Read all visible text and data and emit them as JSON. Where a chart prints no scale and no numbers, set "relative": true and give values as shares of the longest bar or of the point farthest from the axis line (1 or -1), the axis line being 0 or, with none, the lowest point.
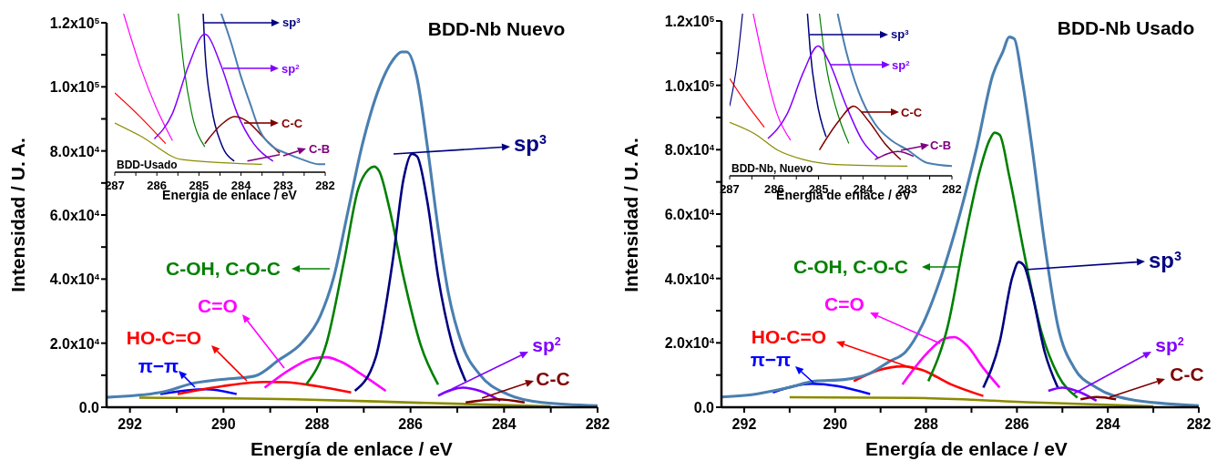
{
  "chart_data": [
    {
      "type": "line",
      "legend": "left",
      "title": "BDD-Nb Nuevo",
      "xlabel": "Energía de enlace / eV",
      "ylabel": "Intensidad / U. A.",
      "xlim": [
        292.5,
        282
      ],
      "xticks": [
        292,
        {
          "value": 291,
          "label": null
        },
        290,
        {
          "value": 289,
          "label": null
        },
        288,
        {
          "value": 287,
          "label": null
        },
        286,
        {
          "value": 285,
          "label": null
        },
        284,
        {
          "value": 283,
          "label": null
        },
        282
      ],
      "ylim": [
        0,
        120000
      ],
      "yticks": [
        {
          "value": 0,
          "label": "0.0"
        },
        {
          "value": 10000,
          "label": null
        },
        {
          "value": 20000,
          "label": "2.0x10$^{4}$"
        },
        {
          "value": 30000,
          "label": null
        },
        {
          "value": 40000,
          "label": "4.0x10$^{4}$"
        },
        {
          "value": 50000,
          "label": null
        },
        {
          "value": 60000,
          "label": "6.0x10$^{4}$"
        },
        {
          "value": 70000,
          "label": null
        },
        {
          "value": 80000,
          "label": "8.0x10$^{4}$"
        },
        {
          "value": 90000,
          "label": null
        },
        {
          "value": 100000,
          "label": "1.0x10$^{5}$"
        },
        {
          "value": 110000,
          "label": null
        },
        {
          "value": 120000,
          "label": "1.2x10$^{5}$"
        }
      ],
      "series": [
        {
          "color": "#8b8b00",
          "x": [
            291.8,
            288.5,
            285.8,
            283.0
          ],
          "values": [
            3000,
            2500,
            1400,
            300
          ]
        },
        {
          "name": "π−π",
          "color": "#0000ff",
          "x": [
            291.35,
            290.38,
            289.72
          ],
          "values": [
            4100,
            5600,
            4100
          ]
        },
        {
          "name": "HO-C=O",
          "color": "#ff0000",
          "x": [
            290.98,
            290.01,
            289.12,
            288.68,
            288.01,
            287.27
          ],
          "values": [
            4100,
            6600,
            7900,
            7800,
            6600,
            4600
          ]
        },
        {
          "name": "C=O",
          "color": "#ff00ff",
          "x": [
            289.12,
            288.53,
            288.08,
            287.79,
            287.49,
            287.04,
            286.53
          ],
          "values": [
            6100,
            12200,
            15300,
            15600,
            14200,
            10200,
            5100
          ]
        },
        {
          "name": "C-OH, C-O-C",
          "color": "#008000",
          "x": [
            288.23,
            287.79,
            287.42,
            287.12,
            286.9,
            286.78,
            286.67,
            286.45,
            286.15,
            285.78,
            285.41
          ],
          "values": [
            7100,
            20300,
            45800,
            68100,
            74200,
            75100,
            73700,
            62000,
            40700,
            19300,
            7100
          ]
        },
        {
          "name": "sp$^{3}$",
          "color": "#000080",
          "x": [
            287.19,
            286.75,
            286.38,
            286.15,
            285.97,
            285.86,
            285.64,
            285.41,
            285.12,
            284.82
          ],
          "values": [
            5100,
            15300,
            45800,
            71200,
            79100,
            78300,
            64100,
            40700,
            20300,
            8100
          ]
        },
        {
          "name": "sp$^{2}$",
          "color": "#8000ff",
          "x": [
            285.41,
            284.89,
            284.52,
            284.08
          ],
          "values": [
            3600,
            6100,
            5100,
            2000
          ]
        },
        {
          "name": "C-C",
          "color": "#800000",
          "x": [
            284.82,
            284.15,
            283.56
          ],
          "values": [
            1500,
            2500,
            1500
          ]
        },
        {
          "color": "#4a7fb0",
          "x": [
            292.5,
            291.35,
            290.61,
            290.09,
            289.34,
            288.82,
            288.31,
            287.93,
            287.64,
            287.34,
            287.04,
            286.67,
            286.38,
            286.19,
            286.08,
            285.86,
            285.64,
            285.41,
            285.19,
            284.89,
            284.52,
            283.93,
            283.19,
            282
          ],
          "values": [
            3100,
            4600,
            7600,
            8600,
            9700,
            14700,
            20300,
            28500,
            40700,
            61000,
            81400,
            99700,
            108300,
            110900,
            110900,
            102700,
            81400,
            55900,
            35600,
            19300,
            10200,
            4100,
            1500,
            500
          ]
        }
      ]
    },
    {
      "type": "line",
      "relative": true,
      "xlabel": "Energía de enlace / eV",
      "xlim": [
        287,
        282
      ],
      "xticks": [
        287,
        {
          "value": 286.5,
          "label": null
        },
        286,
        {
          "value": 285.5,
          "label": null
        },
        285,
        {
          "value": 284.5,
          "label": null
        },
        284,
        {
          "value": 283.5,
          "label": null
        },
        283,
        {
          "value": 282.5,
          "label": null
        },
        282
      ],
      "legend": "top right",
      "annotations": [
        "BDD-Usado"
      ],
      "series": [
        {
          "color": "#8b8b00",
          "x": [
            287,
            286.4,
            285.4,
            283.5
          ],
          "values": [
            0.31,
            0.23,
            0.08,
            0.05
          ]
        },
        {
          "color": "#ff0000",
          "x": [
            287,
            286.4,
            285.79
          ],
          "values": [
            0.5,
            0.35,
            0.18
          ]
        },
        {
          "color": "#ff00ff",
          "x": [
            286.79,
            286.4,
            286.02,
            285.63
          ],
          "values": [
            1.0,
            0.67,
            0.41,
            0.2
          ]
        },
        {
          "color": "#008000",
          "x": [
            285.49,
            285.36,
            285.17,
            284.86
          ],
          "values": [
            1.0,
            0.67,
            0.37,
            0.16
          ]
        },
        {
          "name": "sp$^{3}$",
          "color": "#000080",
          "x": [
            284.9,
            284.86,
            284.7,
            284.47,
            284.16
          ],
          "values": [
            1.0,
            0.78,
            0.41,
            0.18,
            0.07
          ]
        },
        {
          "name": "sp$^{2}$",
          "color": "#8000ff",
          "x": [
            286.06,
            285.63,
            285.25,
            284.86,
            284.47,
            284.09,
            283.7,
            283.24
          ],
          "values": [
            0.21,
            0.37,
            0.67,
            0.87,
            0.67,
            0.37,
            0.18,
            0.07
          ]
        },
        {
          "name": "C-C",
          "color": "#800000",
          "x": [
            284.86,
            284.47,
            284.16,
            283.85,
            283.47,
            283.08
          ],
          "values": [
            0.18,
            0.3,
            0.35,
            0.32,
            0.22,
            0.12
          ]
        },
        {
          "name": "C-B",
          "color": "#800080",
          "x": [
            283.85,
            283.08
          ],
          "values": [
            0.07,
            0.11
          ]
        },
        {
          "color": "#4a7fb0",
          "x": [
            284.47,
            284.24,
            284.01,
            283.78,
            283.55,
            283.24,
            282.93,
            282.54,
            282.15,
            282
          ],
          "values": [
            1.0,
            0.82,
            0.61,
            0.43,
            0.26,
            0.16,
            0.12,
            0.08,
            0.05,
            0.05
          ]
        }
      ]
    },
    {
      "type": "line",
      "legend": "left",
      "title": "BDD-Nb Usado",
      "xlabel": "Energía de enlace / eV",
      "ylabel": "Intensidad / U. A.",
      "xlim": [
        292.5,
        282
      ],
      "xticks": [
        292,
        {
          "value": 291,
          "label": null
        },
        290,
        {
          "value": 289,
          "label": null
        },
        288,
        {
          "value": 287,
          "label": null
        },
        286,
        {
          "value": 285,
          "label": null
        },
        284,
        {
          "value": 283,
          "label": null
        },
        282
      ],
      "ylim": [
        0,
        120000
      ],
      "yticks": [
        {
          "value": 0,
          "label": "0.0"
        },
        {
          "value": 10000,
          "label": null
        },
        {
          "value": 20000,
          "label": "2.0x10$^{4}$"
        },
        {
          "value": 30000,
          "label": null
        },
        {
          "value": 40000,
          "label": "4.0x10$^{4}$"
        },
        {
          "value": 50000,
          "label": null
        },
        {
          "value": 60000,
          "label": "6.0x10$^{4}$"
        },
        {
          "value": 70000,
          "label": null
        },
        {
          "value": 80000,
          "label": "8.0x10$^{4}$"
        },
        {
          "value": 90000,
          "label": null
        },
        {
          "value": 100000,
          "label": "1.0x10$^{5}$"
        },
        {
          "value": 110000,
          "label": null
        },
        {
          "value": 120000,
          "label": "1.2x10$^{5}$"
        }
      ],
      "series": [
        {
          "color": "#8b8b00",
          "x": [
            291.0,
            288.3,
            285.6,
            283.0
          ],
          "values": [
            3100,
            2900,
            1500,
            300
          ]
        },
        {
          "name": "π−π",
          "color": "#0000ff",
          "x": [
            291.37,
            290.52,
            289.95,
            289.23
          ],
          "values": [
            4600,
            7300,
            6600,
            4100
          ]
        },
        {
          "name": "HO-C=O",
          "color": "#ff0000",
          "x": [
            289.59,
            289.02,
            288.52,
            288.09,
            287.45,
            286.74
          ],
          "values": [
            8100,
            11600,
            12700,
            11600,
            7100,
            3500
          ]
        },
        {
          "name": "C=O",
          "color": "#ff00ff",
          "x": [
            288.52,
            287.95,
            287.6,
            287.38,
            287.1,
            286.74,
            286.38
          ],
          "values": [
            7100,
            17200,
            21300,
            21800,
            19200,
            12200,
            6100
          ]
        },
        {
          "name": "C-OH, C-O-C",
          "color": "#008000",
          "x": [
            287.95,
            287.52,
            287.17,
            286.81,
            286.6,
            286.49,
            286.38,
            286.17,
            285.81,
            285.46,
            285.1,
            284.67
          ],
          "values": [
            8100,
            25300,
            50700,
            73900,
            83100,
            85300,
            84600,
            71900,
            45600,
            23300,
            10100,
            3000
          ]
        },
        {
          "name": "sp$^{3}$",
          "color": "#000080",
          "x": [
            286.74,
            286.38,
            286.1,
            285.96,
            285.85,
            285.67,
            285.39,
            285.1
          ],
          "values": [
            6100,
            20300,
            40500,
            45100,
            44100,
            35500,
            17200,
            6100
          ]
        },
        {
          "name": "sp$^{2}$",
          "color": "#8000ff",
          "x": [
            285.31,
            285.0,
            284.6,
            284.25
          ],
          "values": [
            5100,
            6100,
            4600,
            2000
          ]
        },
        {
          "name": "C-C",
          "color": "#800000",
          "x": [
            284.6,
            284.25,
            283.82
          ],
          "values": [
            2500,
            3200,
            2500
          ]
        },
        {
          "color": "#4a7fb0",
          "x": [
            292.5,
            291.73,
            291.02,
            290.45,
            289.8,
            289.23,
            288.81,
            288.45,
            288.09,
            287.67,
            287.24,
            286.88,
            286.53,
            286.31,
            286.17,
            286.06,
            285.88,
            285.67,
            285.39,
            285.1,
            284.74,
            284.25,
            283.53,
            282
          ],
          "values": [
            3200,
            4100,
            6100,
            8100,
            8600,
            10600,
            14200,
            17200,
            25300,
            40500,
            60800,
            81000,
            103300,
            110400,
            115000,
            114500,
            101300,
            81000,
            50700,
            25300,
            12200,
            6100,
            2500,
            500
          ]
        }
      ]
    },
    {
      "type": "line",
      "relative": true,
      "xlabel": "Energía de enlace / eV",
      "xlim": [
        287,
        282
      ],
      "xticks": [
        287,
        {
          "value": 286.5,
          "label": null
        },
        286,
        {
          "value": 285.5,
          "label": null
        },
        285,
        {
          "value": 284.5,
          "label": null
        },
        284,
        {
          "value": 283.5,
          "label": null
        },
        283,
        {
          "value": 282.5,
          "label": null
        },
        282
      ],
      "legend": "top right",
      "annotations": [
        "BDD-Nb, Nuevo"
      ],
      "series": [
        {
          "color": "#8b8b00",
          "x": [
            287,
            286.44,
            285.93,
            285.34,
            284.61,
            283.0
          ],
          "values": [
            0.33,
            0.26,
            0.16,
            0.1,
            0.07,
            0.06
          ]
        },
        {
          "color": "#ff0000",
          "x": [
            287,
            286.66,
            286.22
          ],
          "values": [
            0.6,
            0.46,
            0.3
          ]
        },
        {
          "color": "#ff00ff",
          "x": [
            286.47,
            286.22,
            285.93,
            285.63
          ],
          "values": [
            1.0,
            0.68,
            0.38,
            0.22
          ]
        },
        {
          "color": "#000080",
          "x": [
            287,
            286.84,
            286.71
          ],
          "values": [
            0.43,
            0.68,
            1.0
          ]
        },
        {
          "color": "#008000",
          "x": [
            284.98,
            284.83,
            284.61,
            284.32
          ],
          "values": [
            1.0,
            0.68,
            0.42,
            0.2
          ]
        },
        {
          "name": "sp$^{3}$",
          "color": "#000080",
          "x": [
            285.25,
            285.19,
            285.05,
            284.83
          ],
          "values": [
            1.0,
            0.78,
            0.48,
            0.24
          ]
        },
        {
          "name": "sp$^{2}$",
          "color": "#8000ff",
          "x": [
            286.14,
            285.71,
            285.34,
            285.01,
            284.76,
            284.39,
            284.02,
            283.66
          ],
          "values": [
            0.23,
            0.38,
            0.64,
            0.8,
            0.7,
            0.44,
            0.22,
            0.11
          ]
        },
        {
          "name": "C-C",
          "color": "#800000",
          "x": [
            284.98,
            284.54,
            284.21,
            283.88,
            283.51,
            283.15
          ],
          "values": [
            0.16,
            0.34,
            0.43,
            0.34,
            0.2,
            0.1
          ]
        },
        {
          "name": "C-B",
          "color": "#800080",
          "x": [
            283.73,
            283.22,
            282.86
          ],
          "values": [
            0.1,
            0.15,
            0.12
          ]
        },
        {
          "color": "#4a7fb0",
          "x": [
            284.57,
            284.39,
            284.1,
            283.73,
            283.37,
            283.0,
            282.56,
            282
          ],
          "values": [
            1.0,
            0.78,
            0.52,
            0.32,
            0.22,
            0.16,
            0.08,
            0.06
          ]
        }
      ]
    }
  ]
}
